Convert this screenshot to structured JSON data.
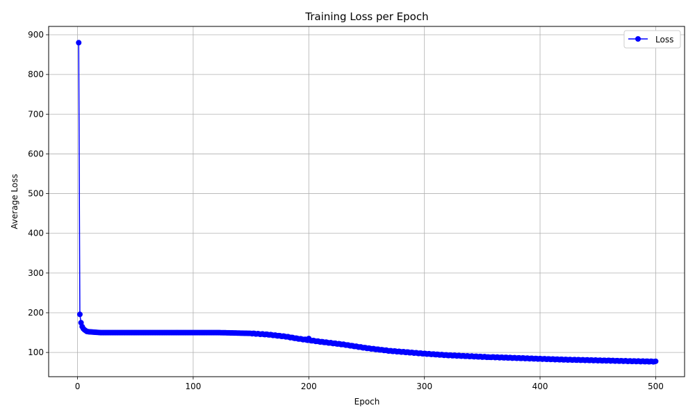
{
  "chart_data": {
    "type": "line",
    "title": "Training Loss per Epoch",
    "xlabel": "Epoch",
    "ylabel": "Average Loss",
    "xlim": [
      -25,
      525
    ],
    "ylim": [
      39,
      921
    ],
    "xticks": [
      0,
      100,
      200,
      300,
      400,
      500
    ],
    "yticks": [
      100,
      200,
      300,
      400,
      500,
      600,
      700,
      800,
      900
    ],
    "grid": true,
    "legend_position": "top-right",
    "series": [
      {
        "name": "Loss",
        "color": "#0000ff",
        "marker": "circle",
        "x_start": 1,
        "x_end": 500,
        "anchors": [
          [
            1,
            880
          ],
          [
            2,
            196
          ],
          [
            3,
            175
          ],
          [
            4,
            165
          ],
          [
            5,
            160
          ],
          [
            6,
            157
          ],
          [
            7,
            155
          ],
          [
            8,
            153
          ],
          [
            10,
            152
          ],
          [
            15,
            151
          ],
          [
            20,
            150
          ],
          [
            60,
            150
          ],
          [
            120,
            150
          ],
          [
            130,
            149.5
          ],
          [
            150,
            148
          ],
          [
            165,
            145
          ],
          [
            180,
            140
          ],
          [
            190,
            135
          ],
          [
            200,
            131
          ],
          [
            210,
            127
          ],
          [
            230,
            120
          ],
          [
            250,
            111
          ],
          [
            270,
            104
          ],
          [
            300,
            97
          ],
          [
            320,
            93
          ],
          [
            350,
            89
          ],
          [
            380,
            86
          ],
          [
            400,
            84
          ],
          [
            420,
            82
          ],
          [
            450,
            80
          ],
          [
            480,
            78
          ],
          [
            500,
            77
          ]
        ],
        "bumps": [
          [
            200,
            135
          ],
          [
            356,
            88
          ],
          [
            460,
            80
          ]
        ]
      }
    ]
  }
}
